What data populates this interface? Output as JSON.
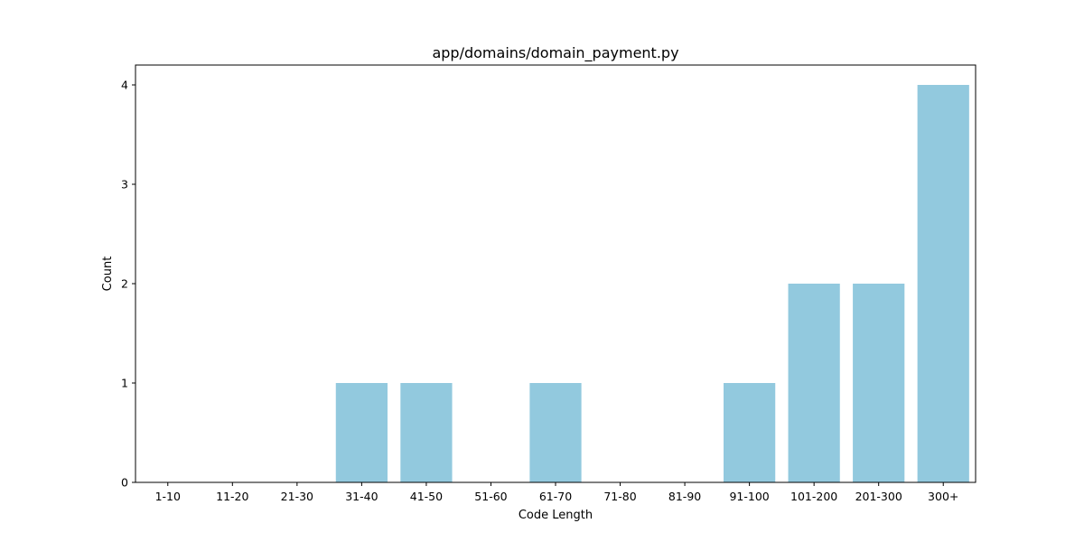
{
  "chart_data": {
    "type": "bar",
    "title": "app/domains/domain_payment.py",
    "xlabel": "Code Length",
    "ylabel": "Count",
    "categories": [
      "1-10",
      "11-20",
      "21-30",
      "31-40",
      "41-50",
      "51-60",
      "61-70",
      "71-80",
      "81-90",
      "91-100",
      "101-200",
      "201-300",
      "300+"
    ],
    "values": [
      0,
      0,
      0,
      1,
      1,
      0,
      1,
      0,
      0,
      1,
      2,
      2,
      4
    ],
    "ylim": [
      0,
      4.2
    ],
    "yticks": [
      0,
      1,
      2,
      3,
      4
    ],
    "grid": false,
    "bar_color": "#92c9de"
  }
}
